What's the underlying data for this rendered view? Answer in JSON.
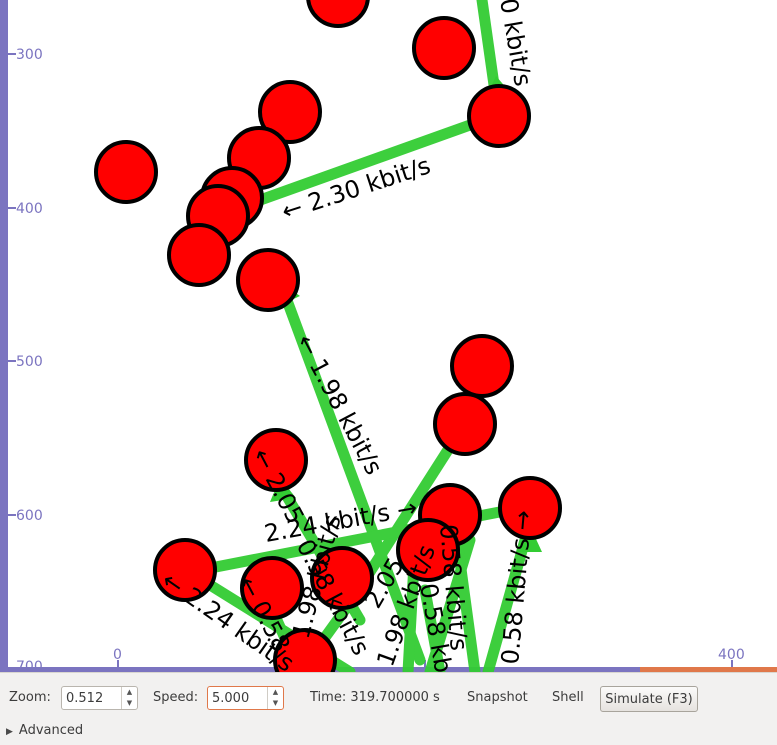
{
  "canvas": {
    "y_ticks": [
      "300",
      "400",
      "500",
      "600",
      "700"
    ],
    "x_ticks": [
      "0",
      "400"
    ],
    "colors": {
      "node": "#ff0000",
      "link": "#33cc33",
      "axis": "#7b74c0",
      "accent": "#e0784a"
    },
    "link_labels": [
      "0 kbit/s",
      "← 2.30 kbit/s",
      "← 1.98 kbit/s",
      "2.24 kbit/s →",
      "← 2.24 kbit/s",
      "← 2.05",
      "0.58 kbit/s",
      "0.58 kbit/s →",
      "← 0.58",
      "0.58 kbit/s",
      "2.05",
      "1.98 kbit/s",
      "0.58 kbit/s",
      "1.98 kbit/s"
    ]
  },
  "controls": {
    "zoom_label": "Zoom:",
    "zoom_value": "0.512",
    "speed_label": "Speed:",
    "speed_value": "5.000",
    "time_text": "Time: 319.700000 s",
    "snapshot_label": "Snapshot",
    "shell_label": "Shell",
    "simulate_label": "Simulate (F3)",
    "advanced_label": "Advanced",
    "spin_up": "▲",
    "spin_down": "▼",
    "expander": "▶"
  }
}
